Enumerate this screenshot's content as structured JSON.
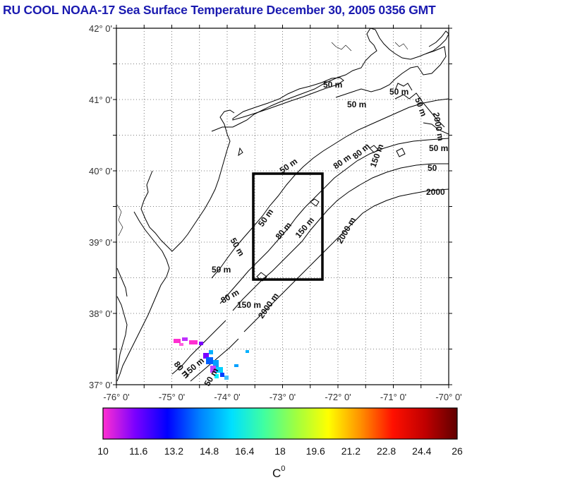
{
  "title": "RU COOL  NOAA-17 Sea Surface Temperature December 30, 2005 0356 GMT",
  "map": {
    "lat_range": [
      37,
      42
    ],
    "lon_range": [
      -76,
      -70
    ],
    "lat_labels": [
      "42° 0'",
      "41° 0'",
      "40° 0'",
      "39° 0'",
      "38° 0'",
      "37° 0'"
    ],
    "lon_labels": [
      "-76° 0'",
      "-75° 0'",
      "-74° 0'",
      "-73° 0'",
      "-72° 0'",
      "-71° 0'",
      "-70° 0'"
    ],
    "contour_labels": [
      "50 m",
      "50 m",
      "50 m",
      "50 m",
      "50 m",
      "50 m",
      "50 m",
      "50 m",
      "50 m",
      "150 m",
      "150 m",
      "150 m",
      "2000",
      "2000 m",
      "2000 m",
      "80 m",
      "80 m",
      "80 m",
      "80 m",
      "80 m",
      "50 m",
      "150 m",
      "50",
      "2000 m"
    ],
    "study_box": {
      "lon": [
        -73.5,
        -72.5
      ],
      "lat": [
        38.5,
        40
      ]
    }
  },
  "colorbar": {
    "tick_labels": [
      "10",
      "11.6",
      "13.2",
      "14.8",
      "16.4",
      "18",
      "19.6",
      "21.2",
      "22.8",
      "24.4",
      "26"
    ],
    "range": [
      10,
      26
    ],
    "unit": "C",
    "unit_superscript": "0",
    "colors": [
      "#ff2fd0",
      "#7a00ff",
      "#0000ff",
      "#0080ff",
      "#00e0ff",
      "#40ffa0",
      "#a0ff40",
      "#ffff00",
      "#ff9000",
      "#ff1000",
      "#c00000",
      "#600000"
    ]
  }
}
